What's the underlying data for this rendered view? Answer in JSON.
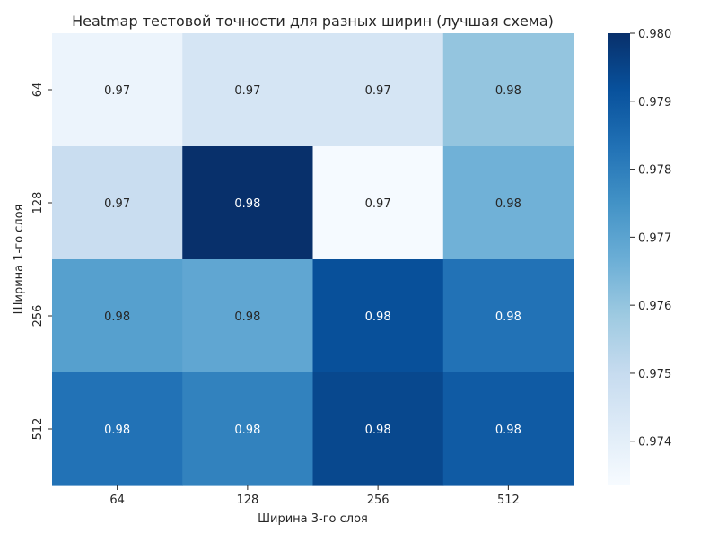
{
  "chart_data": {
    "type": "heatmap",
    "title": "Heatmap тестовой точности для разных ширин (лучшая схема)",
    "xlabel": "Ширина 3-го слоя",
    "ylabel": "Ширина 1-го слоя",
    "x_categories": [
      "64",
      "128",
      "256",
      "512"
    ],
    "y_categories": [
      "64",
      "128",
      "256",
      "512"
    ],
    "values": [
      [
        0.9737,
        0.9745,
        0.9745,
        0.976
      ],
      [
        0.9749,
        0.98,
        0.9734,
        0.9766
      ],
      [
        0.9771,
        0.9769,
        0.9792,
        0.9783
      ],
      [
        0.9783,
        0.9779,
        0.9794,
        0.9789
      ]
    ],
    "cell_labels": [
      [
        "0.97",
        "0.97",
        "0.97",
        "0.98"
      ],
      [
        "0.97",
        "0.98",
        "0.97",
        "0.98"
      ],
      [
        "0.98",
        "0.98",
        "0.98",
        "0.98"
      ],
      [
        "0.98",
        "0.98",
        "0.98",
        "0.98"
      ]
    ],
    "colormap": "Blues",
    "colorbar": {
      "min": 0.97335,
      "max": 0.98,
      "ticks": [
        "0.974",
        "0.975",
        "0.976",
        "0.977",
        "0.978",
        "0.979",
        "0.980"
      ]
    },
    "label_text_colors": {
      "dark_bg": "#ffffff",
      "light_bg": "#262626"
    },
    "grid": false
  }
}
